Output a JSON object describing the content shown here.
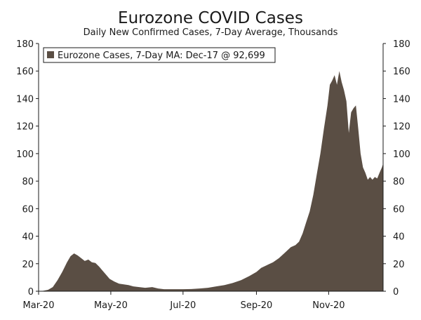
{
  "chart_data": {
    "type": "area",
    "title": "Eurozone COVID Cases",
    "subtitle": "Daily New Confirmed Cases, 7-Day Average, Thousands",
    "xlabel": "",
    "ylabel": "",
    "ylim": [
      0,
      180
    ],
    "y_ticks": [
      0,
      20,
      40,
      60,
      80,
      100,
      120,
      140,
      160,
      180
    ],
    "y_ticks_right": [
      0,
      20,
      40,
      60,
      80,
      100,
      120,
      140,
      160,
      180
    ],
    "x_ticks": [
      {
        "label": "Mar-20",
        "date": "2020-03-01"
      },
      {
        "label": "May-20",
        "date": "2020-05-01"
      },
      {
        "label": "Jul-20",
        "date": "2020-07-01"
      },
      {
        "label": "Sep-20",
        "date": "2020-09-01"
      },
      {
        "label": "Nov-20",
        "date": "2020-11-01"
      }
    ],
    "xlim": [
      "2020-03-01",
      "2020-12-17"
    ],
    "grid": false,
    "legend_position": "top-left",
    "color": "#5a4e44",
    "series": [
      {
        "name": "Eurozone Cases, 7-Day MA: Dec-17 @ 92,699",
        "points": [
          [
            "2020-03-01",
            0.0
          ],
          [
            "2020-03-05",
            0.3
          ],
          [
            "2020-03-09",
            1.0
          ],
          [
            "2020-03-13",
            3.0
          ],
          [
            "2020-03-17",
            8.0
          ],
          [
            "2020-03-21",
            14.0
          ],
          [
            "2020-03-25",
            21.0
          ],
          [
            "2020-03-28",
            25.5
          ],
          [
            "2020-03-31",
            27.5
          ],
          [
            "2020-04-03",
            26.0
          ],
          [
            "2020-04-06",
            24.0
          ],
          [
            "2020-04-09",
            22.0
          ],
          [
            "2020-04-12",
            23.0
          ],
          [
            "2020-04-15",
            21.0
          ],
          [
            "2020-04-18",
            20.5
          ],
          [
            "2020-04-21",
            18.0
          ],
          [
            "2020-04-24",
            15.0
          ],
          [
            "2020-04-27",
            12.0
          ],
          [
            "2020-04-30",
            9.0
          ],
          [
            "2020-05-04",
            7.0
          ],
          [
            "2020-05-08",
            5.5
          ],
          [
            "2020-05-12",
            5.0
          ],
          [
            "2020-05-16",
            4.5
          ],
          [
            "2020-05-20",
            3.5
          ],
          [
            "2020-05-25",
            3.0
          ],
          [
            "2020-05-30",
            2.5
          ],
          [
            "2020-06-05",
            3.0
          ],
          [
            "2020-06-10",
            2.0
          ],
          [
            "2020-06-15",
            1.5
          ],
          [
            "2020-06-20",
            1.5
          ],
          [
            "2020-06-25",
            1.5
          ],
          [
            "2020-07-01",
            1.5
          ],
          [
            "2020-07-08",
            1.6
          ],
          [
            "2020-07-15",
            2.0
          ],
          [
            "2020-07-22",
            2.5
          ],
          [
            "2020-07-29",
            3.5
          ],
          [
            "2020-08-05",
            4.5
          ],
          [
            "2020-08-12",
            6.0
          ],
          [
            "2020-08-19",
            8.0
          ],
          [
            "2020-08-26",
            11.0
          ],
          [
            "2020-09-01",
            14.0
          ],
          [
            "2020-09-05",
            17.0
          ],
          [
            "2020-09-10",
            19.0
          ],
          [
            "2020-09-15",
            21.0
          ],
          [
            "2020-09-20",
            24.0
          ],
          [
            "2020-09-25",
            28.0
          ],
          [
            "2020-09-30",
            32.0
          ],
          [
            "2020-10-04",
            33.5
          ],
          [
            "2020-10-07",
            36.0
          ],
          [
            "2020-10-10",
            42.0
          ],
          [
            "2020-10-13",
            50.0
          ],
          [
            "2020-10-16",
            58.0
          ],
          [
            "2020-10-19",
            70.0
          ],
          [
            "2020-10-22",
            85.0
          ],
          [
            "2020-10-25",
            100.0
          ],
          [
            "2020-10-28",
            118.0
          ],
          [
            "2020-10-31",
            135.0
          ],
          [
            "2020-11-02",
            150.0
          ],
          [
            "2020-11-04",
            153.0
          ],
          [
            "2020-11-06",
            157.0
          ],
          [
            "2020-11-08",
            150.0
          ],
          [
            "2020-11-10",
            160.0
          ],
          [
            "2020-11-12",
            152.0
          ],
          [
            "2020-11-14",
            146.0
          ],
          [
            "2020-11-16",
            138.0
          ],
          [
            "2020-11-18",
            115.0
          ],
          [
            "2020-11-20",
            130.0
          ],
          [
            "2020-11-22",
            133.0
          ],
          [
            "2020-11-24",
            135.0
          ],
          [
            "2020-11-26",
            118.0
          ],
          [
            "2020-11-28",
            100.0
          ],
          [
            "2020-11-30",
            90.0
          ],
          [
            "2020-12-02",
            86.0
          ],
          [
            "2020-12-04",
            81.0
          ],
          [
            "2020-12-06",
            83.0
          ],
          [
            "2020-12-08",
            81.0
          ],
          [
            "2020-12-10",
            83.0
          ],
          [
            "2020-12-12",
            82.0
          ],
          [
            "2020-12-14",
            86.0
          ],
          [
            "2020-12-16",
            90.0
          ],
          [
            "2020-12-17",
            92.7
          ]
        ]
      }
    ]
  }
}
